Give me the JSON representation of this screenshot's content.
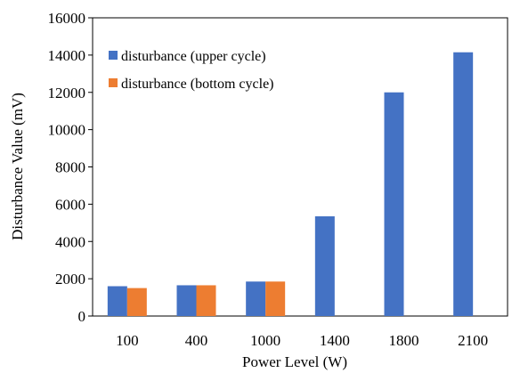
{
  "chart_data": {
    "type": "bar",
    "title": "",
    "xlabel": "Power Level (W)",
    "ylabel": "Disturbance Value  (mV)",
    "categories": [
      "100",
      "400",
      "1000",
      "1400",
      "1800",
      "2100"
    ],
    "series": [
      {
        "name": "disturbance (upper cycle)",
        "color": "#4472C4",
        "values": [
          1600,
          1650,
          1850,
          5350,
          12000,
          14150
        ]
      },
      {
        "name": "disturbance (bottom cycle)",
        "color": "#ED7D31",
        "values": [
          1500,
          1650,
          1850,
          null,
          null,
          null
        ]
      }
    ],
    "ylim": [
      0,
      16000
    ],
    "yticks": [
      0,
      2000,
      4000,
      6000,
      8000,
      10000,
      12000,
      14000,
      16000
    ],
    "grid": false,
    "legend": "top-left"
  }
}
